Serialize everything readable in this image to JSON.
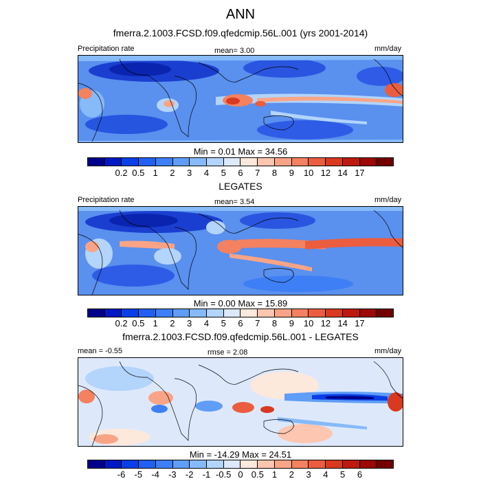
{
  "page": {
    "title": "ANN",
    "panel1": {
      "subtitle": "fmerra.2.1003.FCSD.f09.qfedcmip.56L.001 (yrs 2001-2014)",
      "left_label": "Precipitation rate",
      "center_label": "mean=   3.00",
      "right_label": "mm/day",
      "minmax": "Min =   0.01 Max =  34.56"
    },
    "panel2": {
      "subtitle": "LEGATES",
      "left_label": "Precipitation rate",
      "center_label": "mean=   3.54",
      "right_label": "mm/day",
      "minmax": "Min =   0.00 Max =  15.89"
    },
    "panel3": {
      "subtitle": "fmerra.2.1003.FCSD.f09.qfedcmip.56L.001 - LEGATES",
      "left_label": "mean =  -0.55",
      "center_label": "rmse =   2.08",
      "right_label": "mm/day",
      "minmax": "Min = -14.29 Max =  24.51"
    }
  },
  "colorbars": {
    "precip": {
      "colors": [
        "#00008b",
        "#0019c2",
        "#0a3ee6",
        "#2160f0",
        "#3e7ff5",
        "#5f9df7",
        "#86baf9",
        "#b3d4fb",
        "#dde9fb",
        "#fde8dc",
        "#fcc6b0",
        "#f9a486",
        "#f4815f",
        "#ea5d3f",
        "#d8391f",
        "#bd1a0d",
        "#9b0805",
        "#720000"
      ],
      "ticks": [
        "0.2",
        "0.5",
        "1",
        "2",
        "3",
        "4",
        "5",
        "6",
        "7",
        "8",
        "9",
        "10",
        "12",
        "14",
        "17"
      ]
    },
    "diff": {
      "colors": [
        "#00008b",
        "#0019c2",
        "#0a3ee6",
        "#2160f0",
        "#3e7ff5",
        "#5f9df7",
        "#86baf9",
        "#b3d4fb",
        "#dde9fb",
        "#fde8dc",
        "#fcc6b0",
        "#f9a486",
        "#f4815f",
        "#ea5d3f",
        "#d8391f",
        "#bd1a0d",
        "#9b0805",
        "#720000"
      ],
      "ticks": [
        "-6",
        "-5",
        "-4",
        "-3",
        "-2",
        "-1",
        "-0.5",
        "0",
        "0.5",
        "1",
        "2",
        "3",
        "4",
        "5",
        "6"
      ]
    }
  }
}
